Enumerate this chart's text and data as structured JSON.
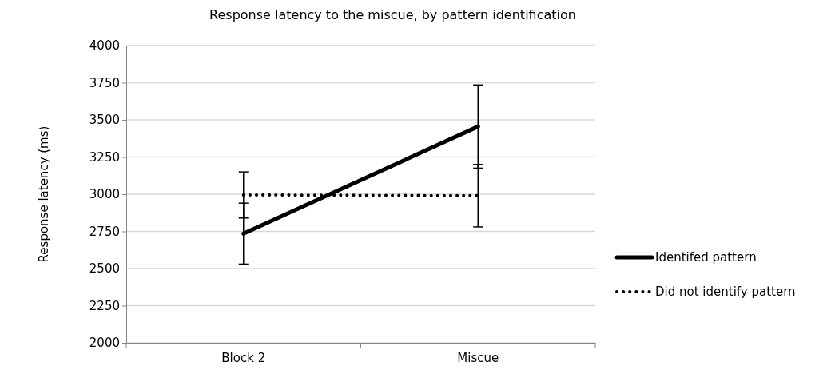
{
  "chart_data": {
    "type": "line",
    "title": "Response latency to the miscue, by pattern identification",
    "ylabel": "Response latency (ms)",
    "categories": [
      "Block 2",
      "Miscue"
    ],
    "ylim": [
      2000,
      4000
    ],
    "yticks": [
      2000,
      2250,
      2500,
      2750,
      3000,
      3250,
      3500,
      3750,
      4000
    ],
    "grid": "y",
    "legend": "right",
    "marker": "none",
    "series": [
      {
        "name": "Identifed pattern",
        "color": "#000000",
        "line_style": "solid",
        "values": [
          2735,
          3455
        ],
        "errors": [
          205,
          280
        ]
      },
      {
        "name": "Did not identify pattern",
        "color": "#000000",
        "line_style": "dotted",
        "values": [
          2995,
          2990
        ],
        "errors": [
          155,
          210
        ]
      }
    ]
  }
}
